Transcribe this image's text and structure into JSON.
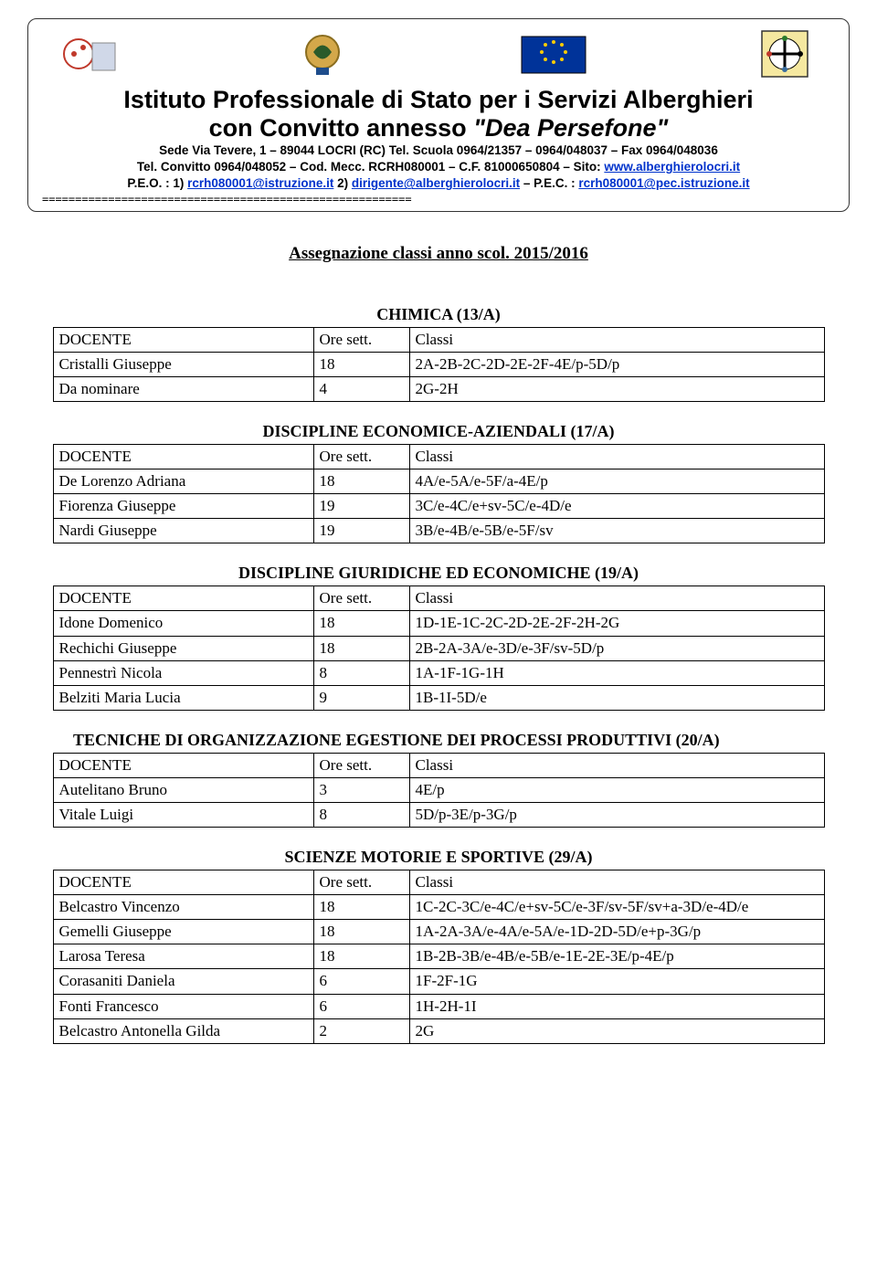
{
  "header": {
    "title_line1": "Istituto Professionale di Stato per i Servizi Alberghieri",
    "title_line2_a": "con Convitto annesso ",
    "title_line2_b": "\"Dea Persefone\"",
    "addr1": "Sede Via Tevere, 1 – 89044 LOCRI (RC) Tel. Scuola 0964/21357 – 0964/048037 – Fax 0964/048036",
    "addr2a": "Tel. Convitto 0964/048052 – Cod. Mecc. RCRH080001 – C.F. 81000650804 – Sito: ",
    "addr2b": "www.alberghierolocri.it",
    "addr3a": "P.E.O. : 1) ",
    "addr3b": "rcrh080001@istruzione.it",
    "addr3c": " 2) ",
    "addr3d": "dirigente@alberghierolocri.it",
    "addr3e": " – P.E.C. : ",
    "addr3f": "rcrh080001@pec.istruzione.it",
    "divider": "========================================================"
  },
  "page_title": "Assegnazione classi anno scol. 2015/2016",
  "col_headers": {
    "docente": "DOCENTE",
    "ore": "Ore sett.",
    "classi": "Classi"
  },
  "sections": [
    {
      "title": "CHIMICA (13/A)",
      "rows": [
        [
          "Cristalli Giuseppe",
          "18",
          "2A-2B-2C-2D-2E-2F-4E/p-5D/p"
        ],
        [
          "Da nominare",
          "4",
          "2G-2H"
        ]
      ]
    },
    {
      "title": "DISCIPLINE ECONOMICE-AZIENDALI (17/A)",
      "rows": [
        [
          "De Lorenzo Adriana",
          "18",
          "4A/e-5A/e-5F/a-4E/p"
        ],
        [
          "Fiorenza Giuseppe",
          "19",
          "3C/e-4C/e+sv-5C/e-4D/e"
        ],
        [
          "Nardi Giuseppe",
          "19",
          "3B/e-4B/e-5B/e-5F/sv"
        ]
      ]
    },
    {
      "title": "DISCIPLINE GIURIDICHE ED ECONOMICHE (19/A)",
      "rows": [
        [
          "Idone Domenico",
          "18",
          "1D-1E-1C-2C-2D-2E-2F-2H-2G"
        ],
        [
          "Rechichi Giuseppe",
          "18",
          "2B-2A-3A/e-3D/e-3F/sv-5D/p"
        ],
        [
          "Pennestrì Nicola",
          "8",
          "1A-1F-1G-1H"
        ],
        [
          "Belziti Maria Lucia",
          "9",
          "1B-1I-5D/e"
        ]
      ]
    },
    {
      "title": "TECNICHE DI ORGANIZZAZIONE EGESTIONE DEI PROCESSI PRODUTTIVI (20/A)",
      "left": true,
      "rows": [
        [
          "Autelitano Bruno",
          "3",
          "4E/p"
        ],
        [
          "Vitale Luigi",
          "8",
          "5D/p-3E/p-3G/p"
        ]
      ]
    },
    {
      "title": "SCIENZE MOTORIE E SPORTIVE (29/A)",
      "rows": [
        [
          "Belcastro Vincenzo",
          "18",
          "1C-2C-3C/e-4C/e+sv-5C/e-3F/sv-5F/sv+a-3D/e-4D/e"
        ],
        [
          "Gemelli Giuseppe",
          "18",
          "1A-2A-3A/e-4A/e-5A/e-1D-2D-5D/e+p-3G/p"
        ],
        [
          "Larosa Teresa",
          "18",
          "1B-2B-3B/e-4B/e-5B/e-1E-2E-3E/p-4E/p"
        ],
        [
          "Corasaniti Daniela",
          "6",
          "1F-2F-1G"
        ],
        [
          "Fonti Francesco",
          "6",
          "1H-2H-1I"
        ],
        [
          "Belcastro Antonella Gilda",
          "2",
          "2G"
        ]
      ]
    }
  ]
}
